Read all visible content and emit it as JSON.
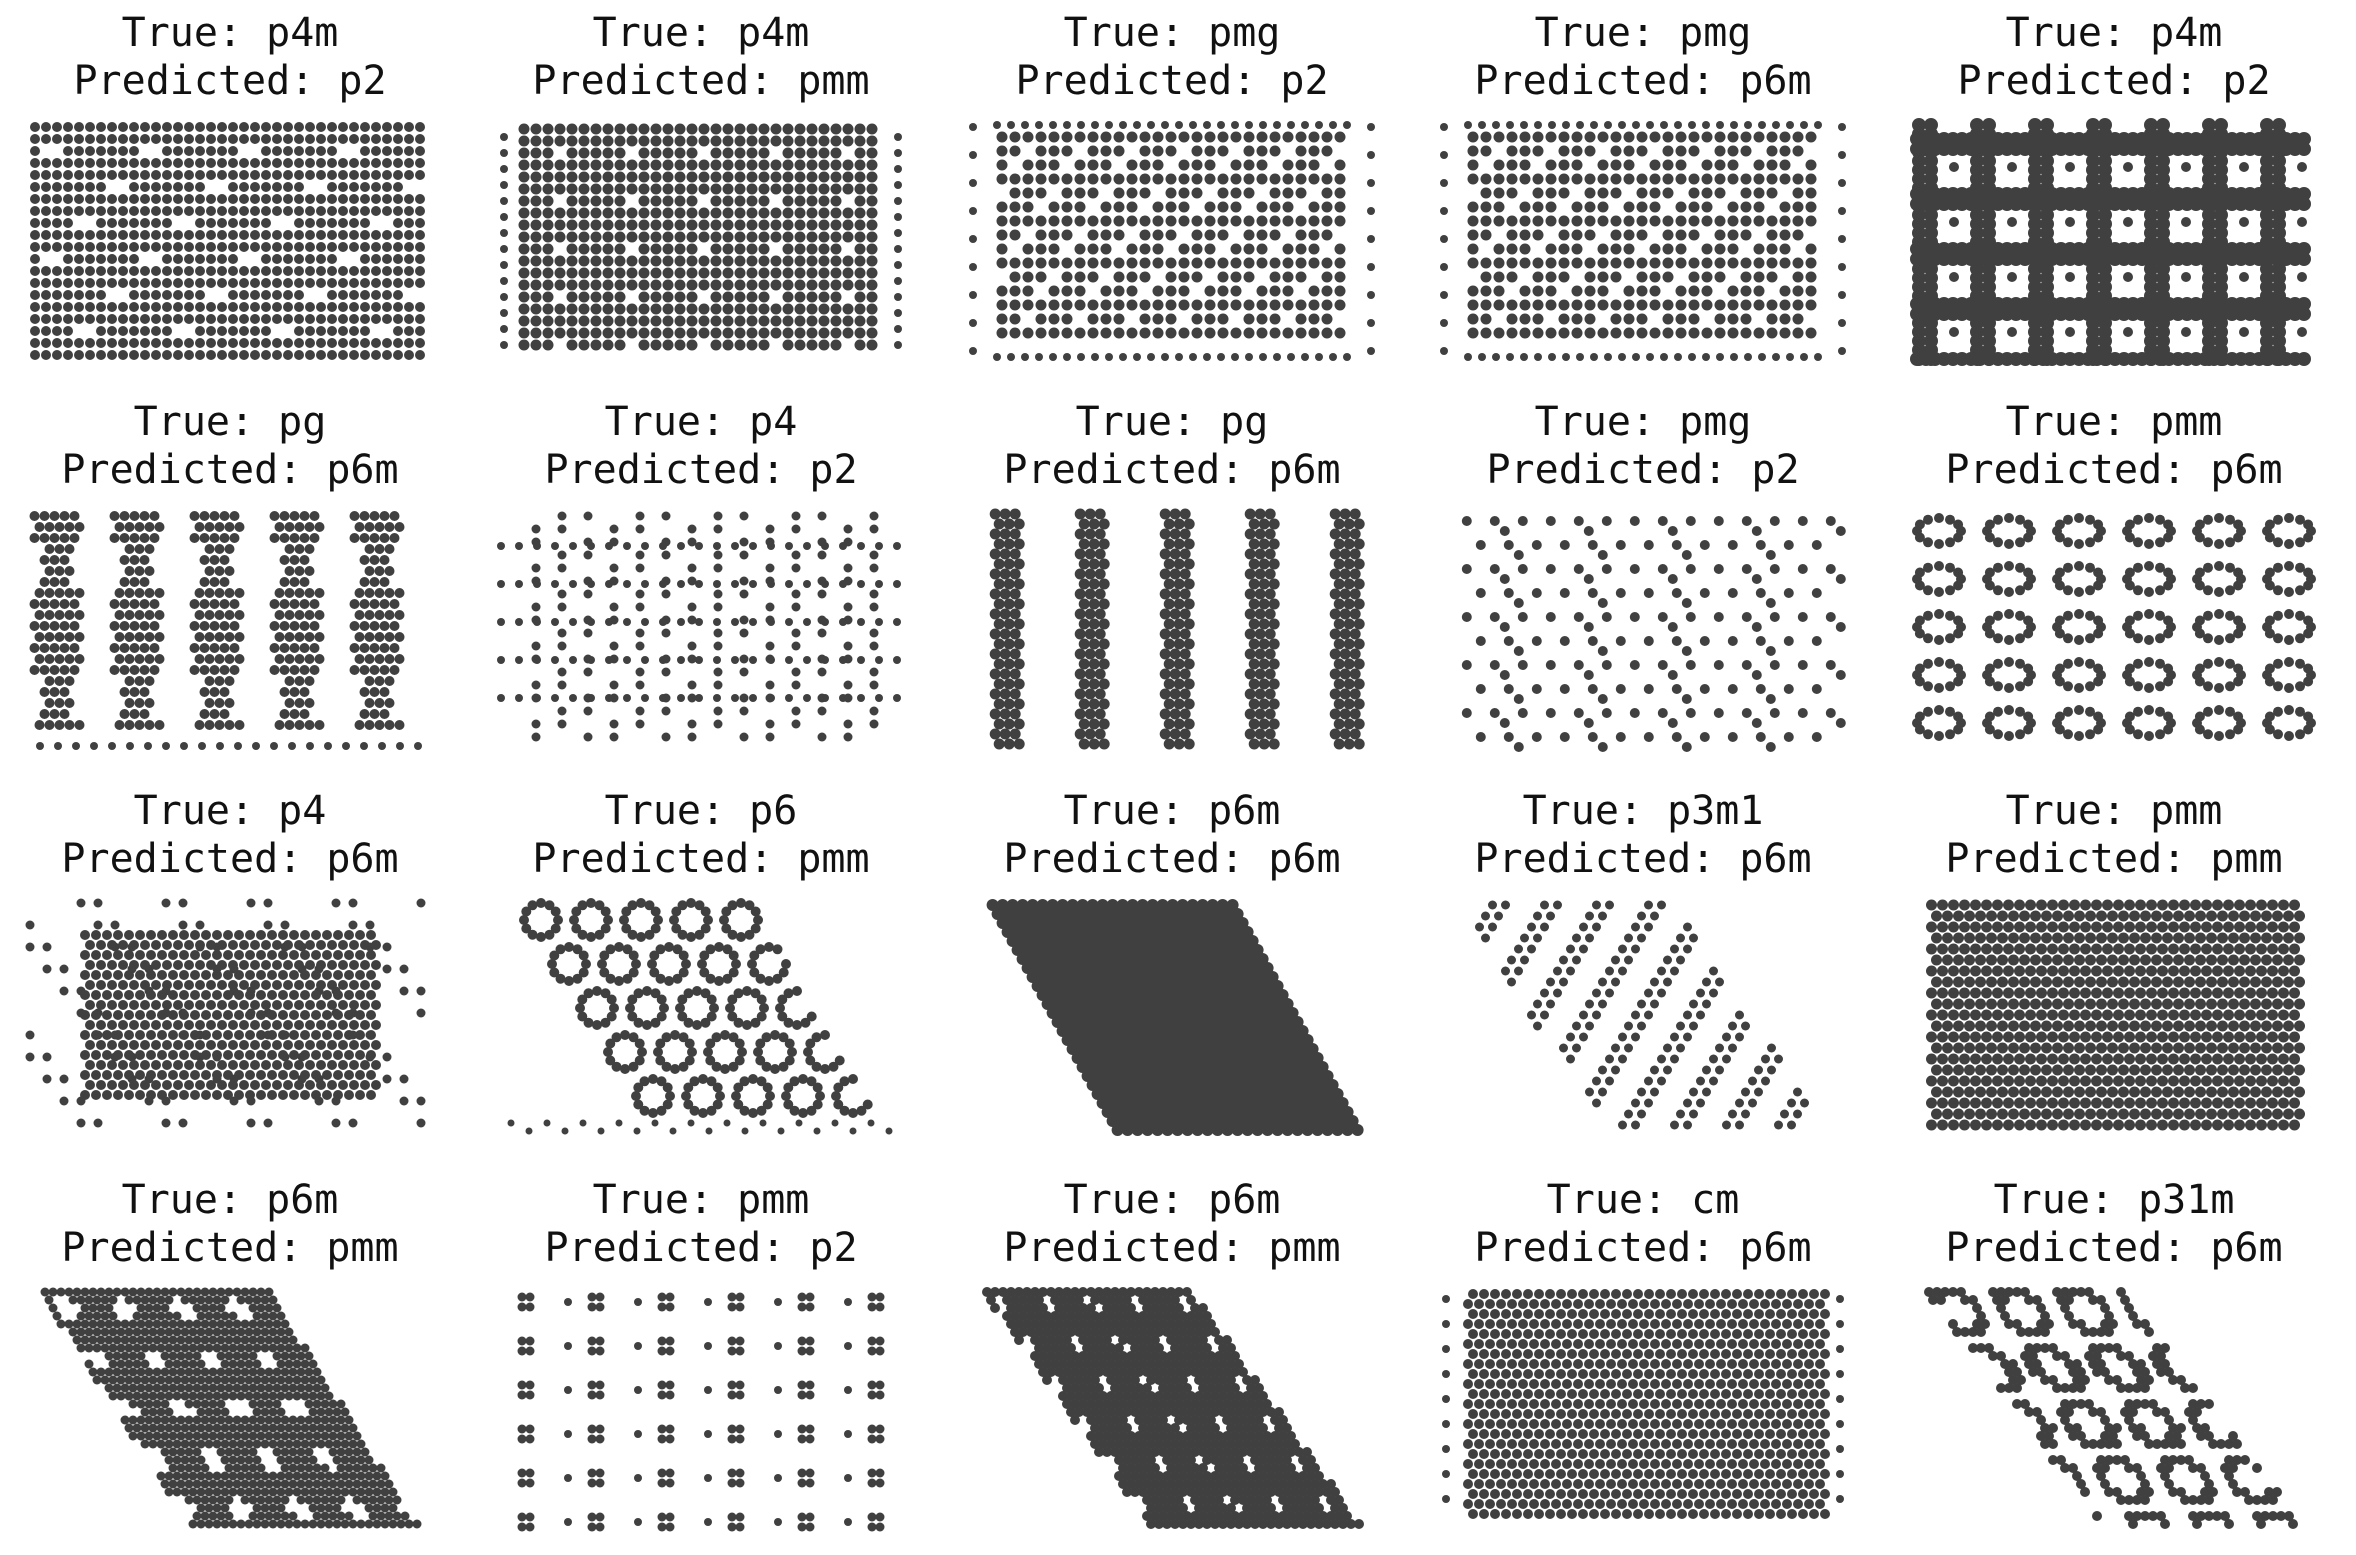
{
  "dot_color": "#404040",
  "panels": [
    {
      "true_label": "True: p4m",
      "predicted_label": "Predicted: p2",
      "group": "p4m",
      "pattern": "rect-dense"
    },
    {
      "true_label": "True: p4m",
      "predicted_label": "Predicted: pmm",
      "group": "p4m",
      "pattern": "rect-voids"
    },
    {
      "true_label": "True: pmg",
      "predicted_label": "Predicted: p2",
      "group": "pmg",
      "pattern": "rect-zigzag"
    },
    {
      "true_label": "True: pmg",
      "predicted_label": "Predicted: p6m",
      "group": "pmg",
      "pattern": "rect-zigzag"
    },
    {
      "true_label": "True: p4m",
      "predicted_label": "Predicted: p2",
      "group": "p4m",
      "pattern": "grid-bars"
    },
    {
      "true_label": "True: pg",
      "predicted_label": "Predicted: p6m",
      "group": "pg",
      "pattern": "column-bands"
    },
    {
      "true_label": "True: p4",
      "predicted_label": "Predicted: p2",
      "group": "p4",
      "pattern": "sparse-columns"
    },
    {
      "true_label": "True: pg",
      "predicted_label": "Predicted: p6m",
      "group": "pg",
      "pattern": "vertical-strips"
    },
    {
      "true_label": "True: pmg",
      "predicted_label": "Predicted: p2",
      "group": "pmg",
      "pattern": "sparse-hex"
    },
    {
      "true_label": "True: pmm",
      "predicted_label": "Predicted: p6m",
      "group": "pmm",
      "pattern": "rings-grid"
    },
    {
      "true_label": "True: p4",
      "predicted_label": "Predicted: p6m",
      "group": "p4",
      "pattern": "rect-ragged"
    },
    {
      "true_label": "True: p6",
      "predicted_label": "Predicted: pmm",
      "group": "p6",
      "pattern": "rhombus-hexrings"
    },
    {
      "true_label": "True: p6m",
      "predicted_label": "Predicted: p6m",
      "group": "p6m",
      "pattern": "rhombus-dense"
    },
    {
      "true_label": "True: p3m1",
      "predicted_label": "Predicted: p6m",
      "group": "p3m1",
      "pattern": "rhombus-triangles"
    },
    {
      "true_label": "True: pmm",
      "predicted_label": "Predicted: pmm",
      "group": "pmm",
      "pattern": "rect-dense-alt"
    },
    {
      "true_label": "True: p6m",
      "predicted_label": "Predicted: pmm",
      "group": "p6m",
      "pattern": "rhombus-holes"
    },
    {
      "true_label": "True: pmm",
      "predicted_label": "Predicted: p2",
      "group": "pmm",
      "pattern": "motif-grid"
    },
    {
      "true_label": "True: p6m",
      "predicted_label": "Predicted: pmm",
      "group": "p6m",
      "pattern": "rhombus-dense-holes"
    },
    {
      "true_label": "True: cm",
      "predicted_label": "Predicted: p6m",
      "group": "cm",
      "pattern": "rect-hex-dense"
    },
    {
      "true_label": "True: p31m",
      "predicted_label": "Predicted: p6m",
      "group": "p31m",
      "pattern": "rhombus-honeycomb"
    }
  ]
}
